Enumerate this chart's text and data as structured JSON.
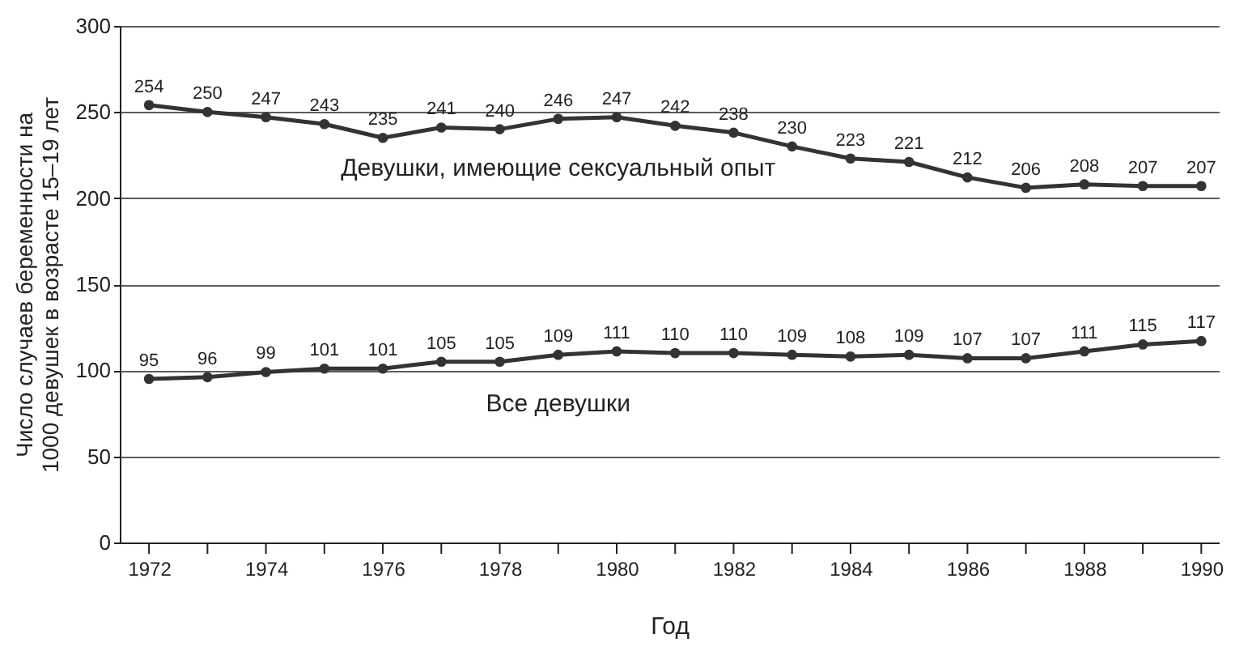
{
  "chart_data": {
    "type": "line",
    "xlabel": "Год",
    "ylabel": "Число случаев беременности на\n1000 девушек в возрасте 15–19 лет",
    "x": [
      1972,
      1973,
      1974,
      1975,
      1976,
      1977,
      1978,
      1979,
      1980,
      1981,
      1982,
      1983,
      1984,
      1985,
      1986,
      1987,
      1988,
      1989,
      1990
    ],
    "series": [
      {
        "name": "Девушки, имеющие сексуальный опыт",
        "color": "#333333",
        "values": [
          254,
          250,
          247,
          243,
          235,
          241,
          240,
          246,
          247,
          242,
          238,
          230,
          223,
          221,
          212,
          206,
          208,
          207,
          207
        ]
      },
      {
        "name": "Все девушки",
        "color": "#333333",
        "values": [
          95,
          96,
          99,
          101,
          101,
          105,
          105,
          109,
          111,
          110,
          110,
          109,
          108,
          109,
          107,
          107,
          111,
          115,
          117
        ]
      }
    ],
    "xlim": [
      1971.5,
      1990.3
    ],
    "xticks": [
      1972,
      {
        "value": 1973,
        "label": null
      },
      1974,
      {
        "value": 1975,
        "label": null
      },
      1976,
      {
        "value": 1977,
        "label": null
      },
      1978,
      {
        "value": 1979,
        "label": null
      },
      1980,
      {
        "value": 1981,
        "label": null
      },
      1982,
      {
        "value": 1983,
        "label": null
      },
      1984,
      {
        "value": 1985,
        "label": null
      },
      1986,
      {
        "value": 1987,
        "label": null
      },
      1988,
      {
        "value": 1989,
        "label": null
      },
      1990
    ],
    "ylim": [
      0,
      300
    ],
    "yticks": [
      0,
      50,
      100,
      150,
      200,
      250,
      300
    ],
    "grid": "y",
    "marker": "circle",
    "line_style": "solid",
    "data_labels": true,
    "legend": false
  }
}
